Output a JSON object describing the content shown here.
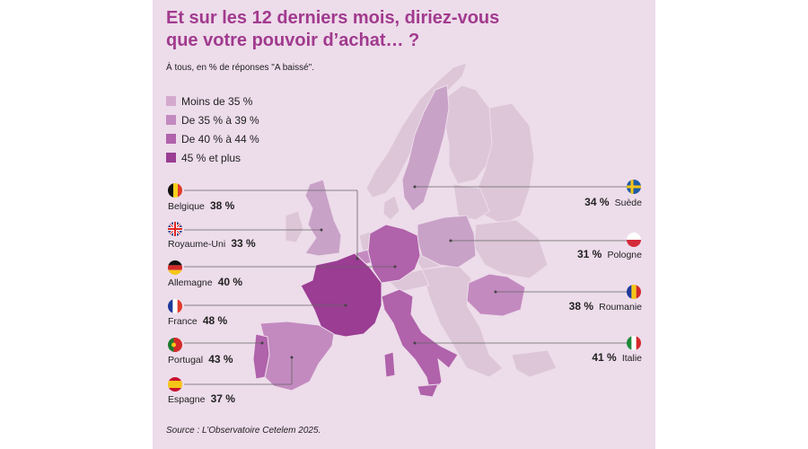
{
  "title_line1": "Et sur les 12 derniers mois, diriez-vous",
  "title_line2": "que votre pouvoir d’achat… ?",
  "subtitle": "À tous, en % de réponses \"A baissé\".",
  "legend": [
    {
      "label": "Moins de 35 %",
      "color": "#d4a9cf"
    },
    {
      "label": "De 35 % à 39 %",
      "color": "#c38ac0"
    },
    {
      "label": "De 40 % à 44 %",
      "color": "#b062ab"
    },
    {
      "label": "45 % et plus",
      "color": "#9a3d93"
    }
  ],
  "countries_left": [
    {
      "name": "Belgique",
      "value": "38 %",
      "flag": "belgium-flag-icon"
    },
    {
      "name": "Royaume-Uni",
      "value": "33 %",
      "flag": "uk-flag-icon"
    },
    {
      "name": "Allemagne",
      "value": "40 %",
      "flag": "germany-flag-icon"
    },
    {
      "name": "France",
      "value": "48 %",
      "flag": "france-flag-icon"
    },
    {
      "name": "Portugal",
      "value": "43 %",
      "flag": "portugal-flag-icon"
    },
    {
      "name": "Espagne",
      "value": "37 %",
      "flag": "spain-flag-icon"
    }
  ],
  "countries_right": [
    {
      "name": "Suède",
      "value": "34 %",
      "flag": "sweden-flag-icon"
    },
    {
      "name": "Pologne",
      "value": "31 %",
      "flag": "poland-flag-icon"
    },
    {
      "name": "Roumanie",
      "value": "38 %",
      "flag": "romania-flag-icon"
    },
    {
      "name": "Italie",
      "value": "41 %",
      "flag": "italy-flag-icon"
    }
  ],
  "source": "Source : L’Observatoire Cetelem 2025.",
  "colors": {
    "panel": "#eddcea",
    "title": "#a13a8e",
    "base_land": "#dcc6d8",
    "leader": "#666666"
  }
}
